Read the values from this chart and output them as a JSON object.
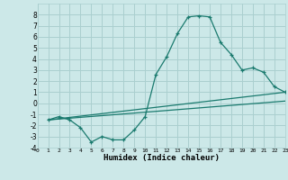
{
  "xlabel": "Humidex (Indice chaleur)",
  "background_color": "#cce8e8",
  "grid_color": "#aacfcf",
  "line_color": "#1a7a6e",
  "ylim": [
    -4,
    9
  ],
  "xlim": [
    0,
    23
  ],
  "yticks": [
    -4,
    -3,
    -2,
    -1,
    0,
    1,
    2,
    3,
    4,
    5,
    6,
    7,
    8
  ],
  "xticks": [
    0,
    1,
    2,
    3,
    4,
    5,
    6,
    7,
    8,
    9,
    10,
    11,
    12,
    13,
    14,
    15,
    16,
    17,
    18,
    19,
    20,
    21,
    22,
    23
  ],
  "series1_x": [
    1,
    2,
    3,
    4,
    5,
    6,
    7,
    8,
    9,
    10,
    11,
    12,
    13,
    14,
    15,
    16,
    17,
    18,
    19,
    20,
    21,
    22,
    23
  ],
  "series1_y": [
    -1.5,
    -1.2,
    -1.5,
    -2.2,
    -3.5,
    -3.0,
    -3.3,
    -3.3,
    -2.4,
    -1.2,
    2.6,
    4.2,
    6.3,
    7.8,
    7.9,
    7.8,
    5.5,
    4.4,
    3.0,
    3.2,
    2.8,
    1.5,
    1.0
  ],
  "series2_x": [
    1,
    23
  ],
  "series2_y": [
    -1.5,
    1.0
  ],
  "series3_x": [
    1,
    23
  ],
  "series3_y": [
    -1.5,
    0.2
  ]
}
